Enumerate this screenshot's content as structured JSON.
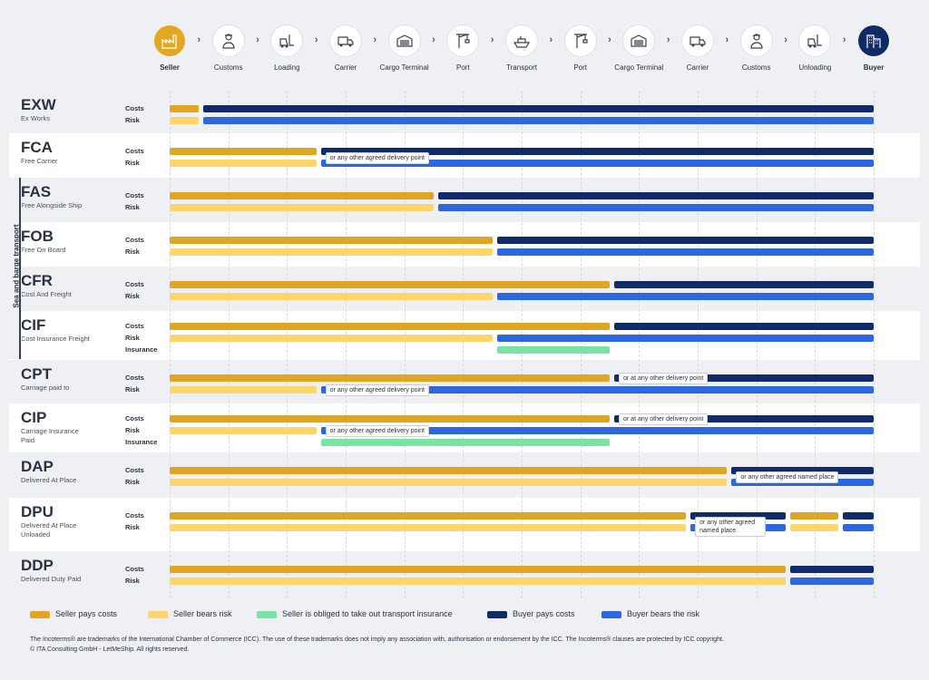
{
  "steps": [
    {
      "label": "Seller",
      "icon": "factory-icon",
      "type": "seller"
    },
    {
      "label": "Customs",
      "icon": "customs-officer-icon"
    },
    {
      "label": "Loading",
      "icon": "forklift-icon"
    },
    {
      "label": "Carrier",
      "icon": "truck-icon"
    },
    {
      "label": "Cargo Terminal",
      "icon": "warehouse-icon"
    },
    {
      "label": "Port",
      "icon": "crane-icon"
    },
    {
      "label": "Transport",
      "icon": "ship-icon"
    },
    {
      "label": "Port",
      "icon": "crane-icon"
    },
    {
      "label": "Cargo Terminal",
      "icon": "warehouse-icon"
    },
    {
      "label": "Carrier",
      "icon": "truck-icon"
    },
    {
      "label": "Customs",
      "icon": "customs-officer-icon"
    },
    {
      "label": "Unloading",
      "icon": "forklift-icon"
    },
    {
      "label": "Buyer",
      "icon": "office-building-icon",
      "type": "buyer"
    }
  ],
  "sea_label": "Sea and barge transport",
  "line_labels": {
    "costs": "Costs",
    "risk": "Risk",
    "insurance": "Insurance"
  },
  "terms": [
    {
      "code": "EXW",
      "name": "Ex Works",
      "alt": false,
      "lines": [
        {
          "kind": "costs",
          "segs": [
            {
              "f": 0,
              "t": 0.5,
              "c": "sc"
            },
            {
              "f": 0.5,
              "t": 12,
              "c": "bc"
            }
          ]
        },
        {
          "kind": "risk",
          "segs": [
            {
              "f": 0,
              "t": 0.5,
              "c": "sr"
            },
            {
              "f": 0.5,
              "t": 12,
              "c": "br"
            }
          ]
        }
      ]
    },
    {
      "code": "FCA",
      "name": "Free Carrier",
      "alt": true,
      "lines": [
        {
          "kind": "costs",
          "segs": [
            {
              "f": 0,
              "t": 2.5,
              "c": "sc"
            },
            {
              "f": 2.5,
              "t": 12,
              "c": "bc"
            }
          ]
        },
        {
          "kind": "risk",
          "segs": [
            {
              "f": 0,
              "t": 2.5,
              "c": "sr"
            },
            {
              "f": 2.5,
              "t": 12,
              "c": "br"
            }
          ]
        }
      ],
      "notes": [
        {
          "text": "or any other agreed delivery point",
          "at": 2.5,
          "line": 0.5
        }
      ]
    },
    {
      "code": "FAS",
      "name": "Free Alongside Ship",
      "alt": false,
      "lines": [
        {
          "kind": "costs",
          "segs": [
            {
              "f": 0,
              "t": 4.5,
              "c": "sc"
            },
            {
              "f": 4.5,
              "t": 12,
              "c": "bc"
            }
          ]
        },
        {
          "kind": "risk",
          "segs": [
            {
              "f": 0,
              "t": 4.5,
              "c": "sr"
            },
            {
              "f": 4.5,
              "t": 12,
              "c": "br"
            }
          ]
        }
      ]
    },
    {
      "code": "FOB",
      "name": "Free On Board",
      "alt": true,
      "lines": [
        {
          "kind": "costs",
          "segs": [
            {
              "f": 0,
              "t": 5.5,
              "c": "sc"
            },
            {
              "f": 5.5,
              "t": 12,
              "c": "bc"
            }
          ]
        },
        {
          "kind": "risk",
          "segs": [
            {
              "f": 0,
              "t": 5.5,
              "c": "sr"
            },
            {
              "f": 5.5,
              "t": 12,
              "c": "br"
            }
          ]
        }
      ]
    },
    {
      "code": "CFR",
      "name": "Cost And Freight",
      "alt": false,
      "lines": [
        {
          "kind": "costs",
          "segs": [
            {
              "f": 0,
              "t": 7.5,
              "c": "sc"
            },
            {
              "f": 7.5,
              "t": 12,
              "c": "bc"
            }
          ]
        },
        {
          "kind": "risk",
          "segs": [
            {
              "f": 0,
              "t": 5.5,
              "c": "sr"
            },
            {
              "f": 5.5,
              "t": 12,
              "c": "br"
            }
          ]
        }
      ]
    },
    {
      "code": "CIF",
      "name": "Cost Insurance Freight",
      "alt": true,
      "lines": [
        {
          "kind": "costs",
          "segs": [
            {
              "f": 0,
              "t": 7.5,
              "c": "sc"
            },
            {
              "f": 7.5,
              "t": 12,
              "c": "bc"
            }
          ]
        },
        {
          "kind": "risk",
          "segs": [
            {
              "f": 0,
              "t": 5.5,
              "c": "sr"
            },
            {
              "f": 5.5,
              "t": 12,
              "c": "br"
            }
          ]
        },
        {
          "kind": "insurance",
          "segs": [
            {
              "f": 5.5,
              "t": 7.5,
              "c": "ins"
            }
          ]
        }
      ]
    },
    {
      "code": "CPT",
      "name": "Carriage paid to",
      "alt": false,
      "lines": [
        {
          "kind": "costs",
          "segs": [
            {
              "f": 0,
              "t": 7.5,
              "c": "sc"
            },
            {
              "f": 7.5,
              "t": 12,
              "c": "bc"
            }
          ]
        },
        {
          "kind": "risk",
          "segs": [
            {
              "f": 0,
              "t": 2.5,
              "c": "sr"
            },
            {
              "f": 2.5,
              "t": 12,
              "c": "br"
            }
          ]
        }
      ],
      "notes": [
        {
          "text": "or at any other delivery point",
          "at": 7.5,
          "line": 0
        },
        {
          "text": "or any other agreed delivery point",
          "at": 2.5,
          "line": 1
        }
      ]
    },
    {
      "code": "CIP",
      "name": "Carriage Insurance Paid",
      "alt": true,
      "lines": [
        {
          "kind": "costs",
          "segs": [
            {
              "f": 0,
              "t": 7.5,
              "c": "sc"
            },
            {
              "f": 7.5,
              "t": 12,
              "c": "bc"
            }
          ]
        },
        {
          "kind": "risk",
          "segs": [
            {
              "f": 0,
              "t": 2.5,
              "c": "sr"
            },
            {
              "f": 2.5,
              "t": 12,
              "c": "br"
            }
          ]
        },
        {
          "kind": "insurance",
          "segs": [
            {
              "f": 2.5,
              "t": 7.5,
              "c": "ins"
            }
          ]
        }
      ],
      "notes": [
        {
          "text": "or at any other delivery point",
          "at": 7.5,
          "line": 0
        },
        {
          "text": "or any other agreed delivery point",
          "at": 2.5,
          "line": 1
        }
      ]
    },
    {
      "code": "DAP",
      "name": "Delivered At Place",
      "alt": false,
      "lines": [
        {
          "kind": "costs",
          "segs": [
            {
              "f": 0,
              "t": 9.5,
              "c": "sc"
            },
            {
              "f": 9.5,
              "t": 12,
              "c": "bc"
            }
          ]
        },
        {
          "kind": "risk",
          "segs": [
            {
              "f": 0,
              "t": 9.5,
              "c": "sr"
            },
            {
              "f": 9.5,
              "t": 12,
              "c": "br"
            }
          ]
        }
      ],
      "notes": [
        {
          "text": "or any other agreed named place",
          "at": 9.5,
          "line": 0.5
        }
      ]
    },
    {
      "code": "DPU",
      "name": "Delivered At Place Unloaded",
      "alt": true,
      "lines": [
        {
          "kind": "costs",
          "segs": [
            {
              "f": 0,
              "t": 8.8,
              "c": "sc"
            },
            {
              "f": 8.8,
              "t": 10.5,
              "c": "bc"
            },
            {
              "f": 10.5,
              "t": 11.4,
              "c": "sc"
            },
            {
              "f": 11.4,
              "t": 12,
              "c": "bc"
            }
          ]
        },
        {
          "kind": "risk",
          "segs": [
            {
              "f": 0,
              "t": 8.8,
              "c": "sr"
            },
            {
              "f": 8.8,
              "t": 10.5,
              "c": "br"
            },
            {
              "f": 10.5,
              "t": 11.4,
              "c": "sr"
            },
            {
              "f": 11.4,
              "t": 12,
              "c": "br"
            }
          ]
        }
      ],
      "notes": [
        {
          "text": "or any other agreed named place",
          "at": 8.8,
          "line": 0.5,
          "wrap": true
        }
      ]
    },
    {
      "code": "DDP",
      "name": "Delivered Duty Paid",
      "alt": false,
      "lines": [
        {
          "kind": "costs",
          "segs": [
            {
              "f": 0,
              "t": 10.5,
              "c": "sc"
            },
            {
              "f": 10.5,
              "t": 12,
              "c": "bc"
            }
          ]
        },
        {
          "kind": "risk",
          "segs": [
            {
              "f": 0,
              "t": 10.5,
              "c": "sr"
            },
            {
              "f": 10.5,
              "t": 12,
              "c": "br"
            }
          ]
        }
      ]
    }
  ],
  "legend": [
    {
      "c": "sc",
      "label": "Seller pays costs"
    },
    {
      "c": "sr",
      "label": "Seller bears risk"
    },
    {
      "c": "ins",
      "label": "Seller is obliged to take out transport insurance"
    },
    {
      "c": "bc",
      "label": "Buyer pays costs"
    },
    {
      "c": "br",
      "label": "Buyer bears the risk"
    }
  ],
  "colors": {
    "sc": "#e0a623",
    "sr": "#fdd56b",
    "ins": "#79e3a6",
    "bc": "#102b6a",
    "br": "#2d67e0"
  },
  "footer": [
    "The Incoterms® are trademarks of the International Chamber of Commerce (ICC). The use of these trademarks does not imply any association with, authorisation or endorsement by the ICC. The Incoterms® clauses are protected by ICC copyright.",
    "© ITA Consulting GmbH - LetMeShip. All rights reserved."
  ]
}
